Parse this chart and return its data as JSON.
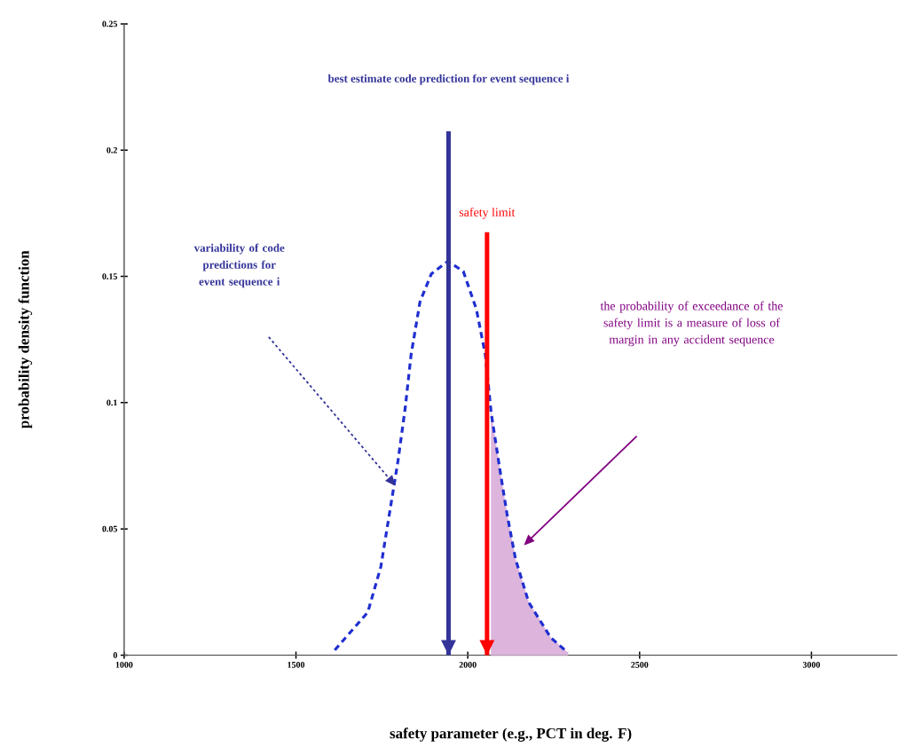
{
  "chart_data": {
    "type": "line",
    "xlabel": "safety parameter (e.g., PCT in deg. F)",
    "ylabel": "probability density function",
    "xlim": [
      1000,
      3250
    ],
    "xticks": [
      1000,
      1500,
      2000,
      2500,
      3000
    ],
    "ylim": [
      0,
      0.25
    ],
    "yticks": [
      0,
      0.05,
      0.1,
      0.15,
      0.2,
      0.25
    ],
    "grid": false,
    "series": [
      {
        "type": "line",
        "color": "#1f2fd0",
        "line_style": "dashed",
        "x": [
          1613,
          1709,
          1747,
          1772,
          1797,
          1818,
          1835,
          1861,
          1894,
          1942,
          1987,
          2025,
          2051,
          2068,
          2094,
          2114,
          2139,
          2177,
          2241,
          2291
        ],
        "values": [
          0.002,
          0.017,
          0.035,
          0.056,
          0.077,
          0.098,
          0.119,
          0.14,
          0.151,
          0.156,
          0.152,
          0.137,
          0.119,
          0.096,
          0.073,
          0.056,
          0.038,
          0.021,
          0.007,
          0.001
        ]
      },
      {
        "type": "area",
        "color": "#dcb4dc",
        "x": [
          2068,
          2094,
          2114,
          2139,
          2177,
          2241,
          2291
        ],
        "values": [
          0.096,
          0.073,
          0.056,
          0.038,
          0.021,
          0.007,
          0.001
        ]
      }
    ],
    "ref_lines": [
      {
        "axis": "x",
        "value": 1944,
        "label": "best estimate code prediction for event sequence i",
        "color": "#333399"
      },
      {
        "axis": "x",
        "value": 2056,
        "label": "safety limit",
        "color": "#ff0000"
      }
    ],
    "annotations": [
      "variability of code predictions for event sequence i",
      "the probability of exceedance of the safety limit is a measure of loss of margin in any accident sequence"
    ]
  }
}
